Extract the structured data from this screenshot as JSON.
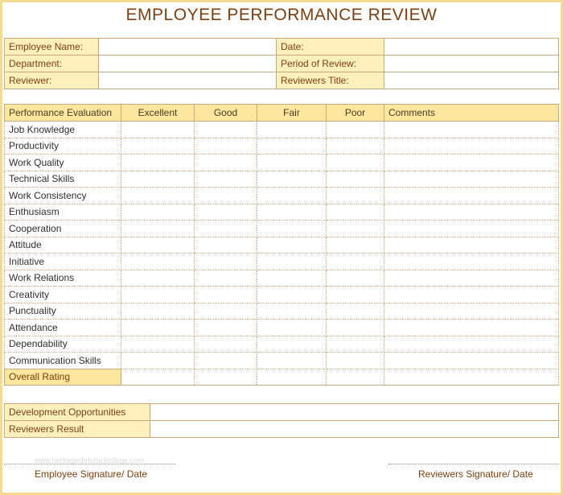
{
  "title": "EMPLOYEE PERFORMANCE REVIEW",
  "info": {
    "employee_name": "Employee Name:",
    "department": "Department:",
    "reviewer": "Reviewer:",
    "date": "Date:",
    "period": "Period of Review:",
    "reviewers_title": "Reviewers Title:"
  },
  "evaluation": {
    "headers": [
      "Performance Evaluation",
      "Excellent",
      "Good",
      "Fair",
      "Poor",
      "Comments"
    ],
    "criteria": [
      "Job Knowledge",
      "Productivity",
      "Work Quality",
      "Technical Skills",
      "Work Consistency",
      "Enthusiasm",
      "Cooperation",
      "Attitude",
      "Initiative",
      "Work Relations",
      "Creativity",
      "Punctuality",
      "Attendance",
      "Dependability",
      "Communication Skills"
    ],
    "overall": "Overall Rating"
  },
  "development": {
    "opportunities": "Development Opportunities",
    "result": "Reviewers Result"
  },
  "signatures": {
    "employee": "Employee Signature/ Date",
    "reviewer": "Reviewers Signature/ Date"
  },
  "watermark": "www.heritagechristiancollege.com",
  "colors": {
    "accent_dark": "#7b3f10",
    "header_fill": "#fde79e",
    "label_fill": "#fdf0bd",
    "border": "#f3dc8f"
  }
}
